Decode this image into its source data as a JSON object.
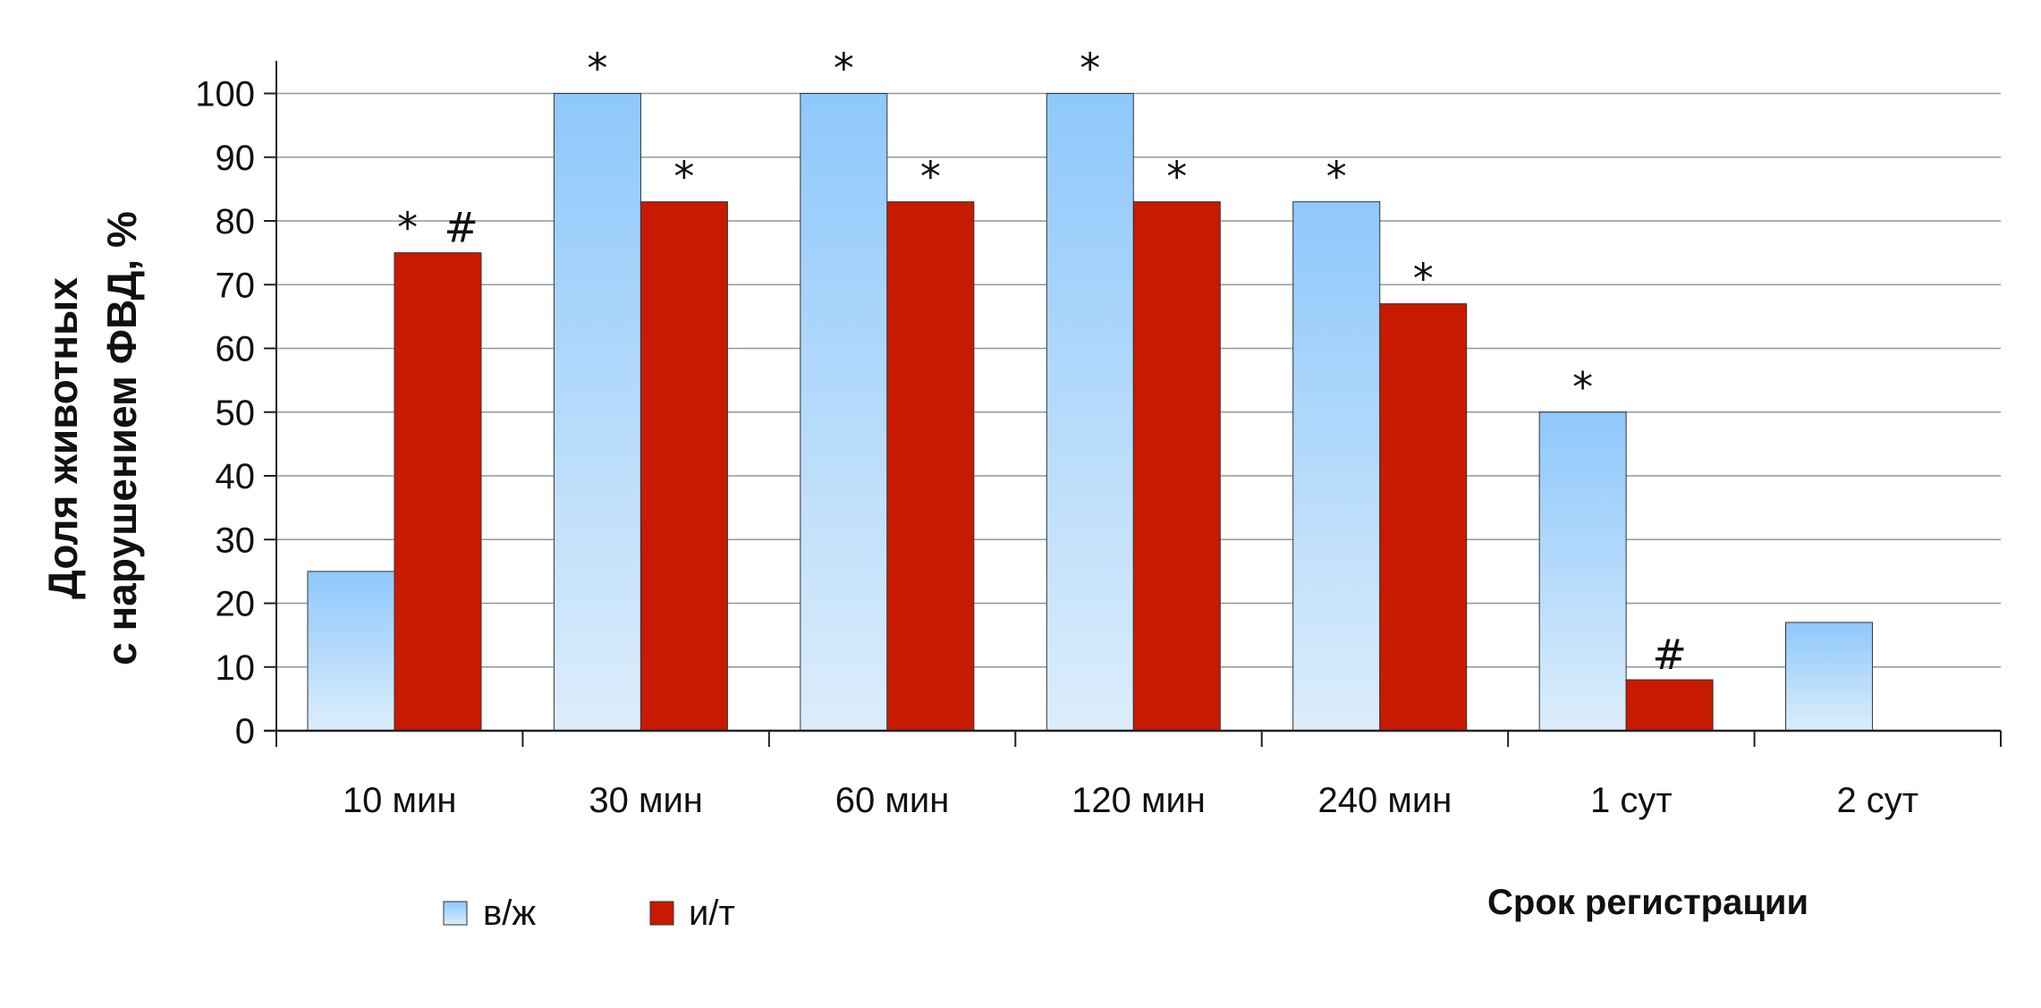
{
  "chart_data": {
    "type": "bar",
    "title": "",
    "xlabel": "Срок регистрации",
    "ylabel_lines": [
      "Доля животных",
      "с нарушением ФВД, %"
    ],
    "ylim": [
      0,
      100
    ],
    "yticks": [
      0,
      10,
      20,
      30,
      40,
      50,
      60,
      70,
      80,
      90,
      100
    ],
    "grid": true,
    "legend_position": "bottom-left",
    "categories": [
      "10 мин",
      "30 мин",
      "60 мин",
      "120 мин",
      "240 мин",
      "1 сут",
      "2 сут"
    ],
    "series": [
      {
        "name": "в/ж",
        "color_top": "#8ec8fb",
        "color_bottom": "#dcedfb",
        "values": [
          25,
          100,
          100,
          100,
          83,
          50,
          17
        ],
        "annotations": [
          "",
          "*",
          "*",
          "*",
          "*",
          "*",
          ""
        ]
      },
      {
        "name": "и/т",
        "color": "#c81a00",
        "values": [
          75,
          83,
          83,
          83,
          67,
          8,
          null
        ],
        "annotations": [
          "*  #",
          "*",
          "*",
          "*",
          "*",
          "#",
          ""
        ]
      }
    ]
  }
}
